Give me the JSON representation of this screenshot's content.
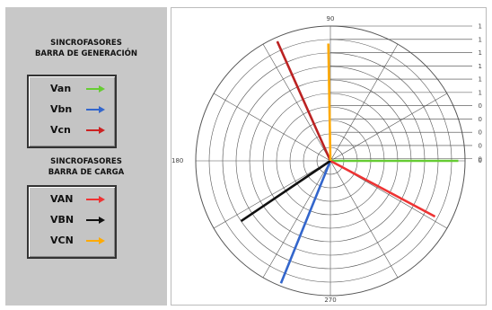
{
  "generation_panel": {
    "title_line1": "SINCROFASORES",
    "title_line2": "BARRA DE GENERACIÓN",
    "items": [
      {
        "label": "Van",
        "color": "#66cc33"
      },
      {
        "label": "Vbn",
        "color": "#3366cc"
      },
      {
        "label": "Vcn",
        "color": "#cc2222"
      }
    ]
  },
  "load_panel": {
    "title_line1": "SINCROFASORES",
    "title_line2": "BARRA DE CARGA",
    "items": [
      {
        "label": "VAN",
        "color": "#ee3333"
      },
      {
        "label": "VBN",
        "color": "#111111"
      },
      {
        "label": "VCN",
        "color": "#ffaa00"
      }
    ]
  },
  "polar_plot": {
    "angle_labels": {
      "top": "90",
      "left": "180",
      "bottom": "270",
      "right": "0"
    },
    "right_scale_labels": [
      "1",
      "1",
      "1",
      "1",
      "1",
      "1",
      "0",
      "0",
      "0",
      "0",
      "0"
    ],
    "phasors": [
      {
        "name": "Van",
        "angle_deg": 0,
        "magnitude": 0.95,
        "color": "#66cc33"
      },
      {
        "name": "Vbn",
        "angle_deg": 248,
        "magnitude": 0.98,
        "color": "#3366cc"
      },
      {
        "name": "Vcn",
        "angle_deg": 114,
        "magnitude": 0.97,
        "color": "#bb2222"
      },
      {
        "name": "VAN",
        "angle_deg": 332,
        "magnitude": 0.88,
        "color": "#ee3333"
      },
      {
        "name": "VBN",
        "angle_deg": 214,
        "magnitude": 0.8,
        "color": "#111111"
      },
      {
        "name": "VCN",
        "angle_deg": 91,
        "magnitude": 0.87,
        "color": "#ffaa00"
      }
    ]
  }
}
